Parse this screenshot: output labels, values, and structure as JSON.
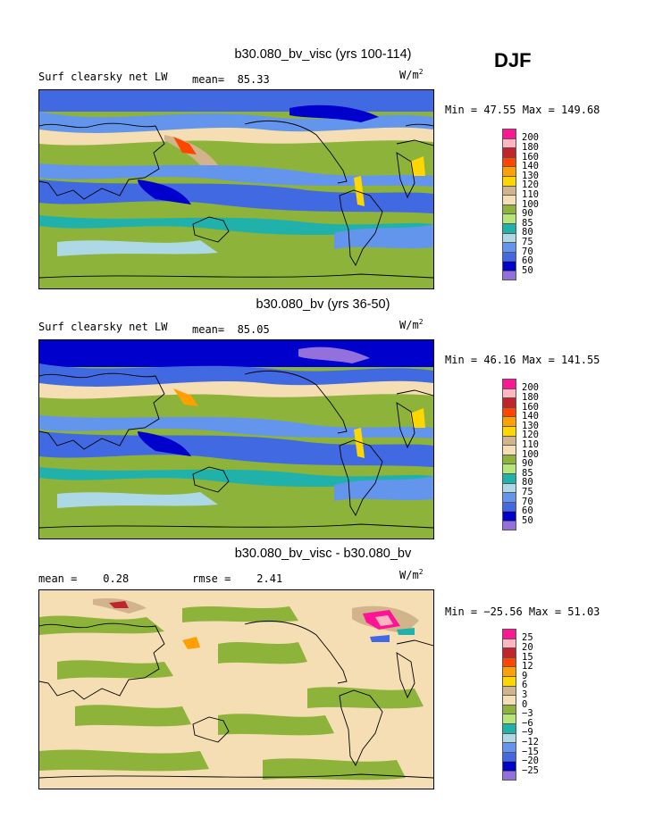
{
  "season": "DJF",
  "panels": [
    {
      "title": "b30.080_bv_visc (yrs 100-114)",
      "left_label": "Surf clearsky net LW",
      "mid_label": "mean=",
      "mid_value": "85.33",
      "units": "W/m",
      "units_exp": "2",
      "minmax": "Min =  47.55 Max = 149.68",
      "legend": [
        "200",
        "180",
        "160",
        "140",
        "130",
        "120",
        "110",
        "100",
        "90",
        "85",
        "80",
        "75",
        "70",
        "60",
        "50"
      ],
      "colors": [
        "#ff1493",
        "#ffb6c1",
        "#c0252e",
        "#ff4500",
        "#ff9f00",
        "#ffd700",
        "#d2b48c",
        "#f5deb3",
        "#8db33a",
        "#b6e67a",
        "#20b2aa",
        "#add8e6",
        "#6495ed",
        "#4169e1",
        "#0000cd",
        "#9370db"
      ]
    },
    {
      "title": "b30.080_bv (yrs 36-50)",
      "left_label": "Surf clearsky net LW",
      "mid_label": "mean=",
      "mid_value": "85.05",
      "units": "W/m",
      "units_exp": "2",
      "minmax": "Min =  46.16 Max = 141.55",
      "legend": [
        "200",
        "180",
        "160",
        "140",
        "130",
        "120",
        "110",
        "100",
        "90",
        "85",
        "80",
        "75",
        "70",
        "60",
        "50"
      ],
      "colors": [
        "#ff1493",
        "#ffb6c1",
        "#c0252e",
        "#ff4500",
        "#ff9f00",
        "#ffd700",
        "#d2b48c",
        "#f5deb3",
        "#8db33a",
        "#b6e67a",
        "#20b2aa",
        "#add8e6",
        "#6495ed",
        "#4169e1",
        "#0000cd",
        "#9370db"
      ]
    },
    {
      "title": "b30.080_bv_visc - b30.080_bv",
      "left_label": "mean =",
      "left_value": "0.28",
      "mid_label": "rmse =",
      "mid_value": "2.41",
      "units": "W/m",
      "units_exp": "2",
      "minmax": "Min = −25.56 Max =  51.03",
      "legend": [
        "25",
        "20",
        "15",
        "12",
        "9",
        "6",
        "3",
        "0",
        "−3",
        "−6",
        "−9",
        "−12",
        "−15",
        "−20",
        "−25"
      ],
      "colors": [
        "#ff1493",
        "#ffb6c1",
        "#c0252e",
        "#ff4500",
        "#ff9f00",
        "#ffd700",
        "#d2b48c",
        "#f5deb3",
        "#8db33a",
        "#b6e67a",
        "#20b2aa",
        "#add8e6",
        "#6495ed",
        "#4169e1",
        "#0000cd",
        "#9370db"
      ]
    }
  ]
}
